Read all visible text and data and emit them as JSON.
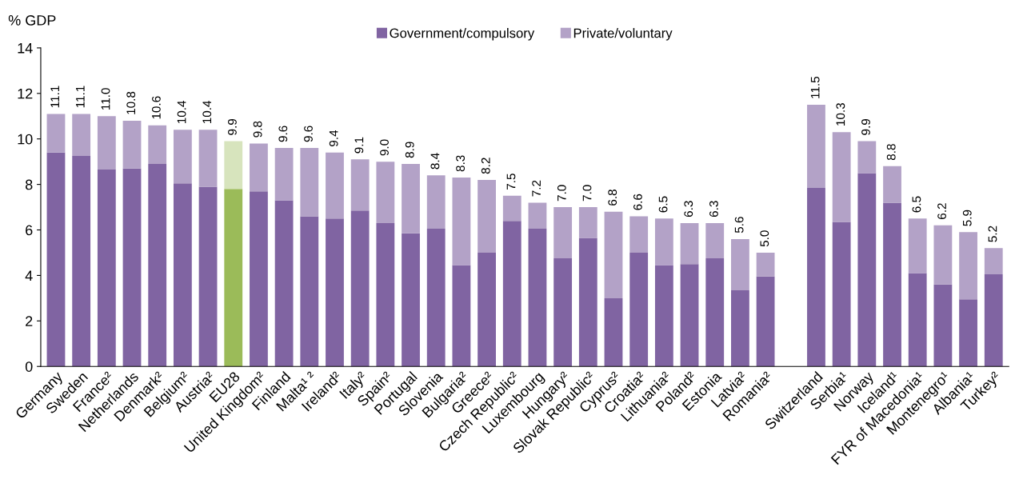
{
  "chart_data": {
    "type": "bar",
    "stacked": true,
    "ylabel": "% GDP",
    "categories": [
      "Germany",
      "Sweden",
      "France²",
      "Netherlands",
      "Denmark²",
      "Belgium²",
      "Austria²",
      "EU28",
      "United Kingdom²",
      "Finland",
      "Malta¹ ²",
      "Ireland²",
      "Italy²",
      "Spain²",
      "Portugal",
      "Slovenia",
      "Bulgaria²",
      "Greece²",
      "Czech Republic²",
      "Luxembourg",
      "Hungary²",
      "Slovak Republic²",
      "Cyprus²",
      "Croatia²",
      "Lithuania²",
      "Poland²",
      "Estonia",
      "Latvia²",
      "Romania²",
      null,
      "Switzerland",
      "Serbia¹",
      "Norway",
      "Iceland¹",
      "FYR of Macedonia¹",
      "Montenegro¹",
      "Albania¹",
      "Turkey²"
    ],
    "series": [
      {
        "name": "Government/compulsory",
        "color": "#8064a2",
        "colors": [
          "#8064a2",
          "#8064a2",
          "#8064a2",
          "#8064a2",
          "#8064a2",
          "#8064a2",
          "#8064a2",
          "#9bbb59",
          "#8064a2",
          "#8064a2",
          "#8064a2",
          "#8064a2",
          "#8064a2",
          "#8064a2",
          "#8064a2",
          "#8064a2",
          "#8064a2",
          "#8064a2",
          "#8064a2",
          "#8064a2",
          "#8064a2",
          "#8064a2",
          "#8064a2",
          "#8064a2",
          "#8064a2",
          "#8064a2",
          "#8064a2",
          "#8064a2",
          "#8064a2",
          null,
          "#8064a2",
          "#8064a2",
          "#8064a2",
          "#8064a2",
          "#8064a2",
          "#8064a2",
          "#8064a2",
          "#8064a2"
        ],
        "values": [
          9.4,
          9.25,
          8.65,
          8.7,
          8.9,
          8.05,
          7.9,
          7.8,
          7.7,
          7.3,
          6.6,
          6.5,
          6.85,
          6.3,
          5.85,
          6.05,
          4.45,
          5.0,
          6.4,
          6.05,
          4.75,
          5.65,
          3.0,
          5.0,
          4.45,
          4.5,
          4.75,
          3.35,
          3.95,
          null,
          7.85,
          6.35,
          8.5,
          7.2,
          4.1,
          3.6,
          2.95,
          4.05
        ]
      },
      {
        "name": "Private/voluntary",
        "color": "#b3a2c7",
        "colors": [
          "#b3a2c7",
          "#b3a2c7",
          "#b3a2c7",
          "#b3a2c7",
          "#b3a2c7",
          "#b3a2c7",
          "#b3a2c7",
          "#d7e4bd",
          "#b3a2c7",
          "#b3a2c7",
          "#b3a2c7",
          "#b3a2c7",
          "#b3a2c7",
          "#b3a2c7",
          "#b3a2c7",
          "#b3a2c7",
          "#b3a2c7",
          "#b3a2c7",
          "#b3a2c7",
          "#b3a2c7",
          "#b3a2c7",
          "#b3a2c7",
          "#b3a2c7",
          "#b3a2c7",
          "#b3a2c7",
          "#b3a2c7",
          "#b3a2c7",
          "#b3a2c7",
          "#b3a2c7",
          null,
          "#b3a2c7",
          "#b3a2c7",
          "#b3a2c7",
          "#b3a2c7",
          "#b3a2c7",
          "#b3a2c7",
          "#b3a2c7",
          "#b3a2c7"
        ],
        "values": [
          1.7,
          1.85,
          2.35,
          2.1,
          1.7,
          2.35,
          2.5,
          2.1,
          2.1,
          2.3,
          3.0,
          2.9,
          2.25,
          2.7,
          3.05,
          2.35,
          3.85,
          3.2,
          1.1,
          1.15,
          2.25,
          1.35,
          3.8,
          1.6,
          2.05,
          1.8,
          1.55,
          2.25,
          1.05,
          null,
          3.65,
          3.95,
          1.4,
          1.6,
          2.4,
          2.6,
          2.95,
          1.15
        ]
      }
    ],
    "totals": [
      "11.1",
      "11.1",
      "11.0",
      "10.8",
      "10.6",
      "10.4",
      "10.4",
      "9.9",
      "9.8",
      "9.6",
      "9.6",
      "9.4",
      "9.1",
      "9.0",
      "8.9",
      "8.4",
      "8.3",
      "8.2",
      "7.5",
      "7.2",
      "7.0",
      "7.0",
      "6.8",
      "6.6",
      "6.5",
      "6.3",
      "6.3",
      "5.6",
      "5.0",
      null,
      "11.5",
      "10.3",
      "9.9",
      "8.8",
      "6.5",
      "6.2",
      "5.9",
      "5.2"
    ],
    "ylim": [
      0,
      14
    ],
    "yticks": [
      0,
      2,
      4,
      6,
      8,
      10,
      12,
      14
    ],
    "legend": "top",
    "grid": false
  }
}
